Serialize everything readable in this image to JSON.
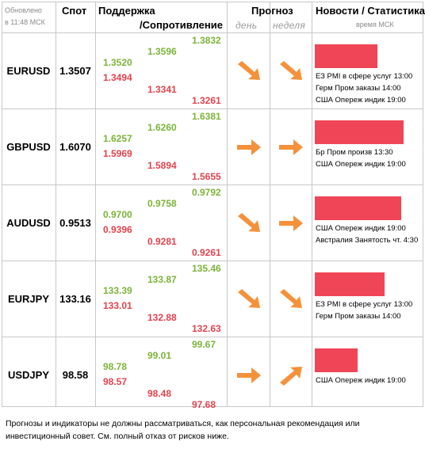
{
  "header": {
    "updated_label": "Обновлено",
    "updated_time": "в 11:48 МСК",
    "spot": "Спот",
    "support": "Поддержка",
    "resistance": "/Сопротивление",
    "forecast": "Прогноз",
    "day": "день",
    "week": "неделя",
    "news": "Новости / Статистика",
    "news_time": "время МСК"
  },
  "rows": [
    {
      "pair": "EURUSD",
      "spot": "1.3507",
      "s1_top": "1.3520",
      "s1_bot": "1.3494",
      "s2_top": "1.3596",
      "s2_bot": "1.3341",
      "s3_top": "1.3832",
      "s3_bot": "1.3261",
      "day_arrow": "arrow-down-right-icon",
      "week_arrow": "arrow-down-right-icon",
      "news_bar_fraction": 0.58,
      "news": [
        "ЕЗ PMI в сфере услуг 13:00",
        "Герм Пром заказы 14:00",
        "США Опереж индик 19:00"
      ]
    },
    {
      "pair": "GBPUSD",
      "spot": "1.6070",
      "s1_top": "1.6257",
      "s1_bot": "1.5969",
      "s2_top": "1.6260",
      "s2_bot": "1.5894",
      "s3_top": "1.6381",
      "s3_bot": "1.5655",
      "day_arrow": "arrow-right-icon",
      "week_arrow": "arrow-right-icon",
      "news_bar_fraction": 0.82,
      "news": [
        "Бр Пром произв 13:30",
        "США Опереж индик 19:00"
      ]
    },
    {
      "pair": "AUDUSD",
      "spot": "0.9513",
      "s1_top": "0.9700",
      "s1_bot": "0.9396",
      "s2_top": "0.9758",
      "s2_bot": "0.9281",
      "s3_top": "0.9792",
      "s3_bot": "0.9261",
      "day_arrow": "arrow-down-right-icon",
      "week_arrow": "arrow-right-icon",
      "news_bar_fraction": 0.8,
      "news": [
        "США Опереж индик 19:00",
        "Австралия Занятость чт. 4:30"
      ]
    },
    {
      "pair": "EURJPY",
      "spot": "133.16",
      "s1_top": "133.39",
      "s1_bot": "133.01",
      "s2_top": "133.87",
      "s2_bot": "132.88",
      "s3_top": "135.46",
      "s3_bot": "132.63",
      "day_arrow": "arrow-down-right-icon",
      "week_arrow": "arrow-down-right-icon",
      "news_bar_fraction": 0.65,
      "news": [
        "ЕЗ PMI в сфере услуг 13:00",
        "Герм Пром заказы 14:00"
      ]
    },
    {
      "pair": "USDJPY",
      "spot": "98.58",
      "s1_top": "98.78",
      "s1_bot": "98.57",
      "s2_top": "99.01",
      "s2_bot": "98.48",
      "s3_top": "99.67",
      "s3_bot": "97.68",
      "day_arrow": "arrow-right-icon",
      "week_arrow": "arrow-up-right-icon",
      "news_bar_fraction": 0.4,
      "news": [
        "США Опереж индик 19:00"
      ]
    }
  ],
  "footer": "Прогнозы и индикаторы не должны рассматриваться, как персональная рекомендация или инвестиционный совет. См. полный отказ от рисков ниже.",
  "colors": {
    "support": "#7cb33a",
    "resistance": "#e0434f",
    "arrow": "#f5913a",
    "bar": "#f04556"
  }
}
